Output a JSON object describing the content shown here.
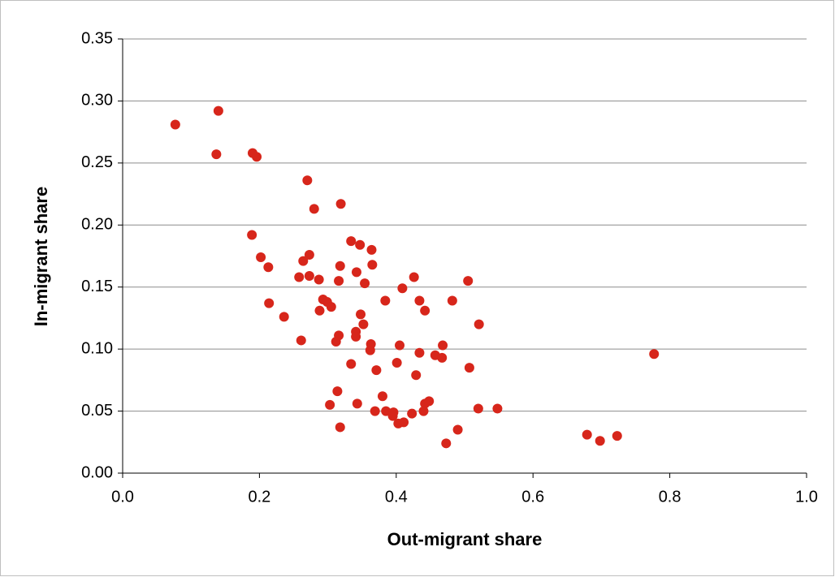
{
  "chart_data": {
    "type": "scatter",
    "x_label": "Out-migrant share",
    "y_label": "In-migrant share",
    "color": "#d7261b",
    "grid": true,
    "xlim": [
      0,
      1
    ],
    "ylim": [
      0,
      0.35
    ],
    "xticks": [
      {
        "value": 0,
        "label": "0.0"
      },
      0.2,
      0.4,
      0.6,
      0.8,
      {
        "value": 1,
        "label": "1.0"
      }
    ],
    "yticks": [
      {
        "value": 0,
        "label": "0.00"
      },
      0.05,
      {
        "value": 0.1,
        "label": "0.10"
      },
      0.15,
      {
        "value": 0.2,
        "label": "0.20"
      },
      0.25,
      {
        "value": 0.3,
        "label": "0.30"
      },
      0.35
    ],
    "x": [
      0.077,
      0.14,
      0.137,
      0.19,
      0.196,
      0.27,
      0.28,
      0.319,
      0.189,
      0.202,
      0.213,
      0.264,
      0.273,
      0.334,
      0.347,
      0.364,
      0.318,
      0.365,
      0.258,
      0.273,
      0.287,
      0.316,
      0.342,
      0.354,
      0.426,
      0.409,
      0.214,
      0.236,
      0.293,
      0.299,
      0.288,
      0.305,
      0.384,
      0.434,
      0.442,
      0.482,
      0.505,
      0.521,
      0.348,
      0.352,
      0.261,
      0.316,
      0.312,
      0.341,
      0.341,
      0.363,
      0.362,
      0.405,
      0.434,
      0.457,
      0.467,
      0.468,
      0.777,
      0.334,
      0.371,
      0.401,
      0.429,
      0.507,
      0.314,
      0.38,
      0.303,
      0.343,
      0.369,
      0.385,
      0.396,
      0.395,
      0.448,
      0.442,
      0.44,
      0.423,
      0.52,
      0.548,
      0.318,
      0.403,
      0.411,
      0.49,
      0.473,
      0.679,
      0.698,
      0.723
    ],
    "y": [
      0.281,
      0.292,
      0.257,
      0.258,
      0.255,
      0.236,
      0.213,
      0.217,
      0.192,
      0.174,
      0.166,
      0.171,
      0.176,
      0.187,
      0.184,
      0.18,
      0.167,
      0.168,
      0.158,
      0.159,
      0.156,
      0.155,
      0.162,
      0.153,
      0.158,
      0.149,
      0.137,
      0.126,
      0.14,
      0.138,
      0.131,
      0.134,
      0.139,
      0.139,
      0.131,
      0.139,
      0.155,
      0.12,
      0.128,
      0.12,
      0.107,
      0.111,
      0.106,
      0.114,
      0.11,
      0.104,
      0.099,
      0.103,
      0.097,
      0.095,
      0.093,
      0.103,
      0.096,
      0.088,
      0.083,
      0.089,
      0.079,
      0.085,
      0.066,
      0.062,
      0.055,
      0.056,
      0.05,
      0.05,
      0.049,
      0.046,
      0.058,
      0.056,
      0.05,
      0.048,
      0.052,
      0.052,
      0.037,
      0.04,
      0.041,
      0.035,
      0.024,
      0.031,
      0.026,
      0.03
    ]
  }
}
